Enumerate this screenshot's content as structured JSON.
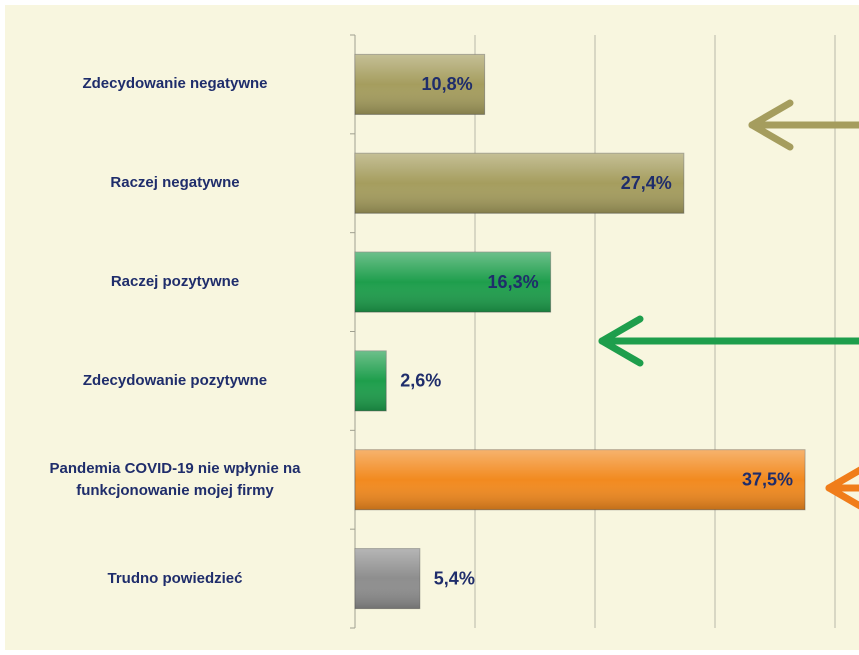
{
  "chart_data": {
    "type": "bar",
    "orientation": "horizontal",
    "categories": [
      "Zdecydowanie negatywne",
      "Raczej negatywne",
      "Raczej pozytywne",
      "Zdecydowanie pozytywne",
      "Pandemia COVID-19 nie wpłynie na funkcjonowanie mojej firmy",
      "Trudno powiedzieć"
    ],
    "values": [
      10.8,
      27.4,
      16.3,
      2.6,
      37.5,
      5.4
    ],
    "value_labels": [
      "10,8%",
      "27,4%",
      "16,3%",
      "2,6%",
      "37,5%",
      "5,4%"
    ],
    "colors": [
      "#a59d5e",
      "#a59d5e",
      "#1e9e4c",
      "#1e9e4c",
      "#f28a1f",
      "#8e8e8e"
    ],
    "xlim": [
      0,
      42
    ],
    "xticks": [
      0,
      10,
      20,
      30,
      40
    ],
    "grid": true
  }
}
